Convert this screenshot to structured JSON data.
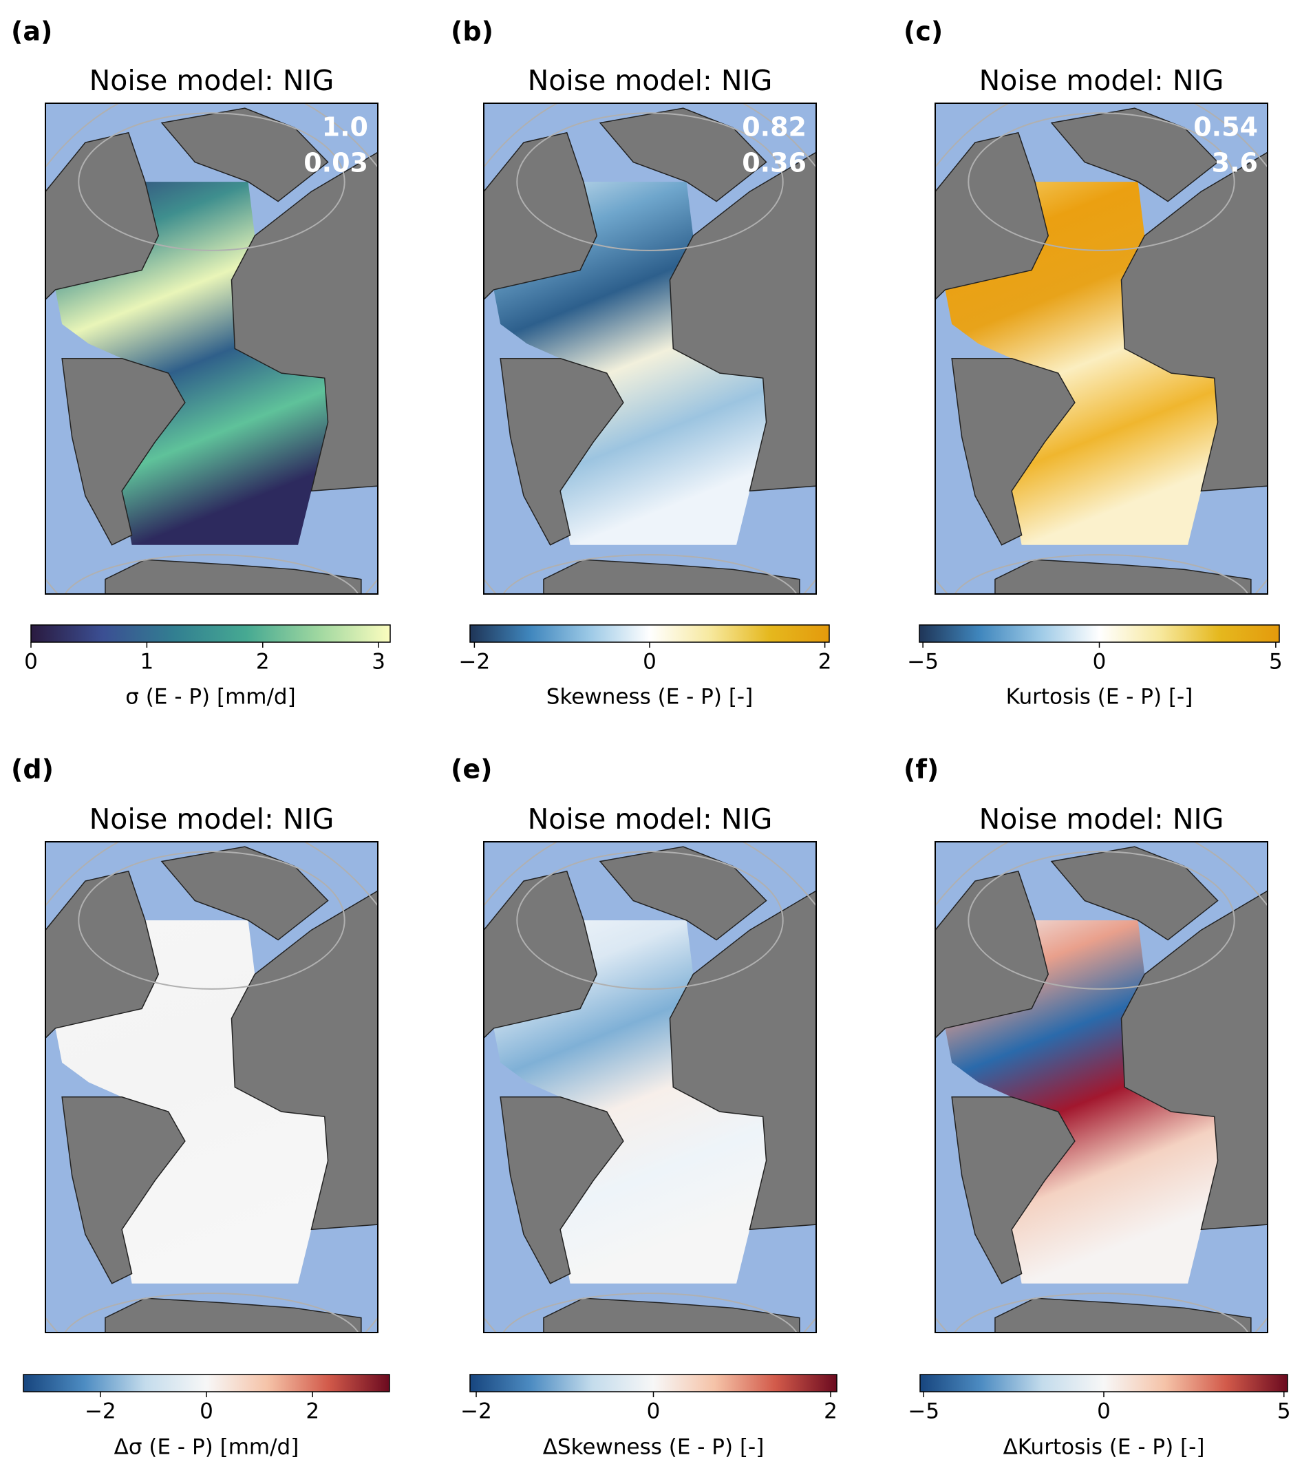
{
  "panels": [
    {
      "label": "(a)",
      "title": "Noise model: NIG",
      "stats": [
        "1.0",
        "0.03"
      ],
      "field_colors": [
        "#2f3a7a",
        "#3f8f8e",
        "#e9f5b8",
        "#2f5f8a",
        "#5fc29a",
        "#2d2a5e"
      ],
      "colorbar": {
        "label": "σ (E - P) [mm/d]",
        "colors": [
          "#2a1a3f",
          "#3b4f93",
          "#327f91",
          "#46a992",
          "#9fd7a0",
          "#fcfdbf"
        ],
        "lim": [
          0,
          3.1
        ],
        "ticks": [
          0,
          1,
          2,
          3
        ]
      }
    },
    {
      "label": "(b)",
      "title": "Noise model: NIG",
      "stats": [
        "0.82",
        "0.36"
      ],
      "field_colors": [
        "#d9e9f4",
        "#6fa6cc",
        "#2d5f8c",
        "#f2f0dc",
        "#9cc4e0",
        "#eef4fa"
      ],
      "colorbar": {
        "label": "Skewness (E - P) [-]",
        "colors": [
          "#1f3557",
          "#3f86bd",
          "#9cc9e6",
          "#ffffff",
          "#f7e9a0",
          "#e5b81e",
          "#e49a0c"
        ],
        "lim": [
          -2.05,
          2.05
        ],
        "ticks": [
          {
            "value": -2,
            "label": "−2"
          },
          0,
          2
        ]
      }
    },
    {
      "label": "(c)",
      "title": "Noise model: NIG",
      "stats": [
        "0.54",
        "3.6"
      ],
      "field_colors": [
        "#f6d778",
        "#eba011",
        "#e8a31a",
        "#fbeec0",
        "#f0b62e",
        "#fbf1cc"
      ],
      "colorbar": {
        "label": "Kurtosis (E - P) [-]",
        "colors": [
          "#1f3557",
          "#3f86bd",
          "#9cc9e6",
          "#ffffff",
          "#f7e9a0",
          "#e5b81e",
          "#e49a0c"
        ],
        "lim": [
          -5.1,
          5.1
        ],
        "ticks": [
          {
            "value": -5,
            "label": "−5"
          },
          0,
          5
        ]
      }
    },
    {
      "label": "(d)",
      "title": "Noise model: NIG",
      "stats": [],
      "field_colors": [
        "#f6f6f6",
        "#f4f4f4",
        "#f7f7f7"
      ],
      "colorbar": {
        "label": "Δσ (E - P) [mm/d]",
        "colors": [
          "#17457e",
          "#4d8cc2",
          "#c4dcec",
          "#f7f7f7",
          "#f5c3a8",
          "#d25a4a",
          "#6b0a1f"
        ],
        "lim": [
          -3.45,
          3.45
        ],
        "ticks": [
          {
            "value": -2,
            "label": "−2"
          },
          0,
          2
        ]
      }
    },
    {
      "label": "(e)",
      "title": "Noise model: NIG",
      "stats": [],
      "field_colors": [
        "#f4f7fb",
        "#dbe8f3",
        "#7fb0d6",
        "#f7efea",
        "#eef4f9",
        "#f6f6f6"
      ],
      "colorbar": {
        "label": "ΔSkewness (E - P) [-]",
        "colors": [
          "#17457e",
          "#4d8cc2",
          "#c4dcec",
          "#f7f7f7",
          "#f5c3a8",
          "#d25a4a",
          "#6b0a1f"
        ],
        "lim": [
          -2.07,
          2.07
        ],
        "ticks": [
          {
            "value": -2,
            "label": "−2"
          },
          0,
          2
        ]
      }
    },
    {
      "label": "(f)",
      "title": "Noise model: NIG",
      "stats": [],
      "field_colors": [
        "#f2f6fa",
        "#e9a08c",
        "#2a6aab",
        "#a2172e",
        "#f4d2c2",
        "#f6f3f2"
      ],
      "colorbar": {
        "label": "ΔKurtosis (E - P) [-]",
        "colors": [
          "#17457e",
          "#4d8cc2",
          "#c4dcec",
          "#f7f7f7",
          "#f5c3a8",
          "#d25a4a",
          "#6b0a1f"
        ],
        "lim": [
          -5.1,
          5.1
        ],
        "ticks": [
          {
            "value": -5,
            "label": "−5"
          },
          0,
          5
        ]
      }
    }
  ]
}
